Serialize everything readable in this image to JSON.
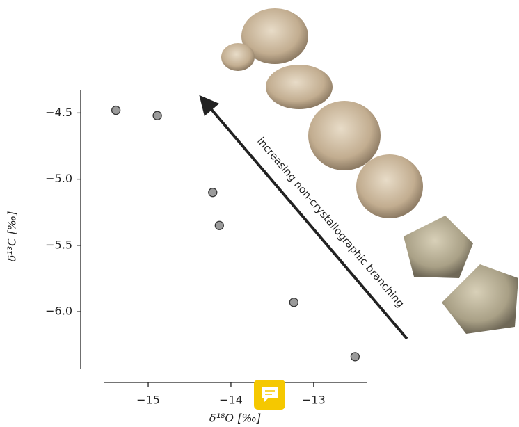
{
  "chart_data": {
    "type": "scatter",
    "x": [
      -15.39,
      -14.89,
      -14.22,
      -14.14,
      -13.24,
      -12.5
    ],
    "values": [
      -4.48,
      -4.52,
      -5.1,
      -5.35,
      -5.93,
      -6.34
    ],
    "color": "#9a9a9a",
    "xlabel": "δ¹⁸O [‰]",
    "ylabel": "δ¹³C [‰]",
    "annotation": "increasing non-crystallographic branching",
    "xlim": [
      -15.53,
      -12.36
    ],
    "ylim": [
      -6.43,
      -4.33
    ],
    "xticks": [
      {
        "value": -15,
        "label": "−15"
      },
      {
        "value": -14,
        "label": "−14"
      },
      {
        "value": -13,
        "label": "−13"
      }
    ],
    "yticks": [
      {
        "value": -4.5,
        "label": "−4.5"
      },
      {
        "value": -5.0,
        "label": "−5.0"
      },
      {
        "value": -5.5,
        "label": "−5.5"
      },
      {
        "value": -6.0,
        "label": "−6.0"
      }
    ]
  }
}
